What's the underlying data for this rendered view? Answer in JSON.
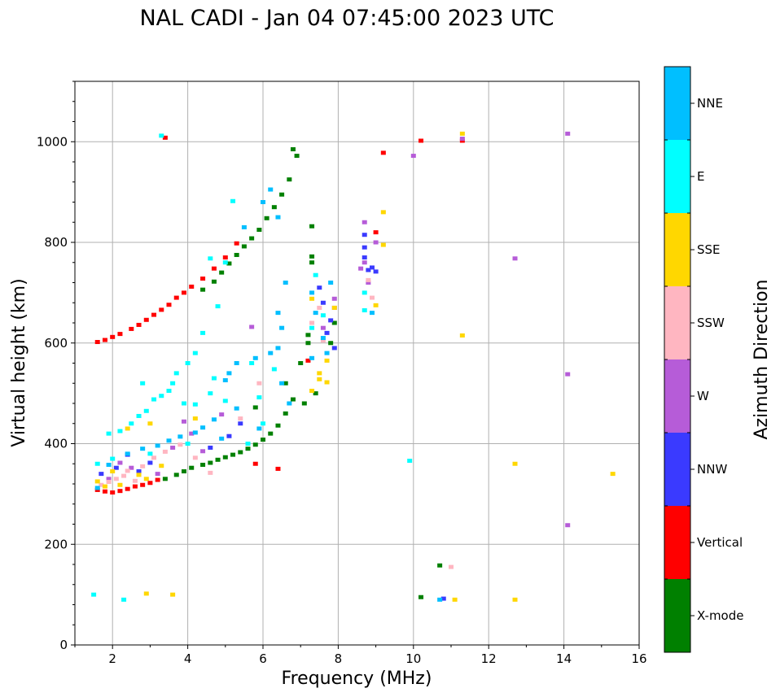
{
  "chart_data": {
    "type": "scatter",
    "title": "NAL CADI - Jan 04 07:45:00 2023 UTC",
    "xlabel": "Frequency (MHz)",
    "ylabel": "Virtual height (km)",
    "xlim": [
      1,
      16
    ],
    "ylim": [
      0,
      1120
    ],
    "xticks": [
      2,
      4,
      6,
      8,
      10,
      12,
      14,
      16
    ],
    "yticks": [
      0,
      200,
      400,
      600,
      800,
      1000
    ],
    "grid": true,
    "colorbar": {
      "label": "Azimuth Direction",
      "categories": [
        {
          "name": "X-mode",
          "color": "#008000"
        },
        {
          "name": "Vertical",
          "color": "#ff0000"
        },
        {
          "name": "NNW",
          "color": "#3a3aff"
        },
        {
          "name": "W",
          "color": "#b65cd8"
        },
        {
          "name": "SSW",
          "color": "#ffb6c1"
        },
        {
          "name": "SSE",
          "color": "#ffd700"
        },
        {
          "name": "E",
          "color": "#00ffff"
        },
        {
          "name": "NNE",
          "color": "#00bfff"
        }
      ]
    },
    "series": [
      {
        "name": "X-mode",
        "color": "#008000",
        "points": [
          [
            3.4,
            330
          ],
          [
            3.7,
            338
          ],
          [
            3.9,
            345
          ],
          [
            4.1,
            352
          ],
          [
            4.4,
            358
          ],
          [
            4.6,
            362
          ],
          [
            4.8,
            368
          ],
          [
            5.0,
            373
          ],
          [
            5.2,
            378
          ],
          [
            5.4,
            383
          ],
          [
            5.6,
            390
          ],
          [
            5.8,
            398
          ],
          [
            6.0,
            408
          ],
          [
            6.2,
            420
          ],
          [
            6.4,
            436
          ],
          [
            6.6,
            460
          ],
          [
            6.8,
            488
          ],
          [
            4.4,
            706
          ],
          [
            4.7,
            722
          ],
          [
            4.9,
            740
          ],
          [
            5.1,
            758
          ],
          [
            5.3,
            775
          ],
          [
            5.5,
            792
          ],
          [
            5.7,
            808
          ],
          [
            5.9,
            825
          ],
          [
            6.1,
            848
          ],
          [
            6.3,
            870
          ],
          [
            6.5,
            895
          ],
          [
            6.7,
            925
          ],
          [
            6.9,
            972
          ],
          [
            6.8,
            985
          ],
          [
            5.8,
            472
          ],
          [
            6.6,
            520
          ],
          [
            7.0,
            560
          ],
          [
            7.2,
            600
          ],
          [
            7.2,
            616
          ],
          [
            7.3,
            772
          ],
          [
            7.3,
            760
          ],
          [
            7.1,
            480
          ],
          [
            7.4,
            500
          ],
          [
            7.3,
            832
          ],
          [
            10.7,
            158
          ],
          [
            10.2,
            95
          ],
          [
            7.9,
            640
          ],
          [
            7.8,
            600
          ]
        ]
      },
      {
        "name": "Vertical",
        "color": "#ff0000",
        "points": [
          [
            1.6,
            308
          ],
          [
            1.8,
            305
          ],
          [
            2.0,
            303
          ],
          [
            2.2,
            306
          ],
          [
            2.4,
            310
          ],
          [
            2.6,
            315
          ],
          [
            2.8,
            318
          ],
          [
            3.0,
            322
          ],
          [
            3.2,
            328
          ],
          [
            1.6,
            602
          ],
          [
            1.8,
            606
          ],
          [
            2.0,
            612
          ],
          [
            2.2,
            618
          ],
          [
            2.5,
            628
          ],
          [
            2.7,
            636
          ],
          [
            2.9,
            646
          ],
          [
            3.1,
            656
          ],
          [
            3.3,
            666
          ],
          [
            3.5,
            676
          ],
          [
            3.7,
            690
          ],
          [
            3.9,
            700
          ],
          [
            4.1,
            712
          ],
          [
            4.4,
            728
          ],
          [
            4.7,
            748
          ],
          [
            5.0,
            770
          ],
          [
            5.3,
            798
          ],
          [
            3.4,
            1008
          ],
          [
            9.2,
            978
          ],
          [
            10.2,
            1002
          ],
          [
            11.3,
            1002
          ],
          [
            7.2,
            565
          ],
          [
            9.0,
            820
          ],
          [
            5.8,
            360
          ],
          [
            6.4,
            350
          ]
        ]
      },
      {
        "name": "NNW",
        "color": "#3a3aff",
        "points": [
          [
            8.7,
            815
          ],
          [
            8.7,
            790
          ],
          [
            8.7,
            770
          ],
          [
            8.8,
            745
          ],
          [
            7.7,
            620
          ],
          [
            7.8,
            645
          ],
          [
            7.5,
            710
          ],
          [
            7.6,
            680
          ],
          [
            7.9,
            590
          ],
          [
            8.9,
            750
          ],
          [
            4.6,
            392
          ],
          [
            5.1,
            415
          ],
          [
            5.4,
            440
          ],
          [
            2.4,
            378
          ],
          [
            3.0,
            362
          ],
          [
            2.7,
            345
          ],
          [
            9.0,
            742
          ],
          [
            10.8,
            92
          ],
          [
            1.7,
            340
          ],
          [
            2.1,
            352
          ]
        ]
      },
      {
        "name": "W",
        "color": "#b65cd8",
        "points": [
          [
            8.7,
            840
          ],
          [
            8.7,
            760
          ],
          [
            8.8,
            720
          ],
          [
            8.6,
            748
          ],
          [
            9.0,
            800
          ],
          [
            7.9,
            670
          ],
          [
            7.6,
            630
          ],
          [
            7.9,
            688
          ],
          [
            10.0,
            972
          ],
          [
            12.7,
            768
          ],
          [
            14.1,
            1016
          ],
          [
            14.1,
            538
          ],
          [
            14.1,
            238
          ],
          [
            5.7,
            632
          ],
          [
            4.9,
            458
          ],
          [
            4.1,
            420
          ],
          [
            3.9,
            444
          ],
          [
            2.2,
            362
          ],
          [
            2.5,
            352
          ],
          [
            3.2,
            340
          ],
          [
            1.9,
            330
          ],
          [
            3.6,
            392
          ],
          [
            4.4,
            385
          ],
          [
            11.3,
            1006
          ]
        ]
      },
      {
        "name": "SSW",
        "color": "#ffb6c1",
        "points": [
          [
            1.7,
            318
          ],
          [
            1.9,
            324
          ],
          [
            2.1,
            330
          ],
          [
            2.3,
            336
          ],
          [
            2.6,
            326
          ],
          [
            2.4,
            346
          ],
          [
            3.1,
            372
          ],
          [
            3.4,
            384
          ],
          [
            3.8,
            398
          ],
          [
            4.2,
            372
          ],
          [
            8.8,
            725
          ],
          [
            8.9,
            690
          ],
          [
            7.6,
            605
          ],
          [
            7.3,
            640
          ],
          [
            5.9,
            520
          ],
          [
            5.4,
            450
          ],
          [
            11.0,
            155
          ],
          [
            2.8,
            355
          ],
          [
            4.6,
            342
          ],
          [
            7.5,
            670
          ]
        ]
      },
      {
        "name": "SSE",
        "color": "#ffd700",
        "points": [
          [
            1.6,
            325
          ],
          [
            1.8,
            315
          ],
          [
            2.0,
            345
          ],
          [
            2.2,
            318
          ],
          [
            2.7,
            338
          ],
          [
            2.9,
            330
          ],
          [
            3.3,
            356
          ],
          [
            3.6,
            100
          ],
          [
            2.9,
            102
          ],
          [
            7.3,
            505
          ],
          [
            7.5,
            528
          ],
          [
            7.5,
            540
          ],
          [
            7.7,
            565
          ],
          [
            7.9,
            670
          ],
          [
            9.2,
            795
          ],
          [
            9.0,
            675
          ],
          [
            9.2,
            860
          ],
          [
            11.3,
            1016
          ],
          [
            11.3,
            615
          ],
          [
            12.7,
            360
          ],
          [
            15.3,
            340
          ],
          [
            11.1,
            90
          ],
          [
            12.7,
            90
          ],
          [
            7.3,
            688
          ],
          [
            7.7,
            522
          ],
          [
            3.0,
            440
          ],
          [
            2.4,
            430
          ],
          [
            4.2,
            450
          ]
        ]
      },
      {
        "name": "E",
        "color": "#00ffff",
        "points": [
          [
            1.5,
            100
          ],
          [
            2.3,
            90
          ],
          [
            3.3,
            1012
          ],
          [
            5.2,
            882
          ],
          [
            5.0,
            760
          ],
          [
            4.6,
            768
          ],
          [
            4.8,
            673
          ],
          [
            4.4,
            620
          ],
          [
            4.2,
            580
          ],
          [
            4.0,
            560
          ],
          [
            3.7,
            540
          ],
          [
            3.6,
            520
          ],
          [
            3.5,
            505
          ],
          [
            3.3,
            495
          ],
          [
            3.1,
            488
          ],
          [
            2.9,
            465
          ],
          [
            2.7,
            455
          ],
          [
            2.5,
            440
          ],
          [
            2.2,
            425
          ],
          [
            1.9,
            420
          ],
          [
            3.9,
            480
          ],
          [
            4.2,
            478
          ],
          [
            5.0,
            485
          ],
          [
            5.7,
            560
          ],
          [
            5.9,
            492
          ],
          [
            6.3,
            548
          ],
          [
            4.7,
            530
          ],
          [
            5.6,
            400
          ],
          [
            6.0,
            440
          ],
          [
            9.9,
            366
          ],
          [
            8.7,
            665
          ],
          [
            8.7,
            700
          ],
          [
            7.6,
            655
          ],
          [
            7.4,
            735
          ],
          [
            7.3,
            630
          ],
          [
            1.6,
            360
          ],
          [
            2.0,
            370
          ],
          [
            3.0,
            380
          ],
          [
            4.0,
            400
          ],
          [
            4.6,
            500
          ],
          [
            2.8,
            520
          ]
        ]
      },
      {
        "name": "NNE",
        "color": "#00bfff",
        "points": [
          [
            6.2,
            905
          ],
          [
            6.4,
            850
          ],
          [
            6.0,
            880
          ],
          [
            5.5,
            830
          ],
          [
            6.6,
            720
          ],
          [
            6.4,
            660
          ],
          [
            6.5,
            630
          ],
          [
            6.4,
            590
          ],
          [
            6.2,
            580
          ],
          [
            5.8,
            570
          ],
          [
            5.3,
            560
          ],
          [
            5.1,
            540
          ],
          [
            5.0,
            526
          ],
          [
            5.3,
            470
          ],
          [
            4.7,
            448
          ],
          [
            4.4,
            432
          ],
          [
            4.2,
            422
          ],
          [
            3.8,
            414
          ],
          [
            3.5,
            406
          ],
          [
            3.2,
            396
          ],
          [
            2.8,
            390
          ],
          [
            2.4,
            380
          ],
          [
            1.6,
            312
          ],
          [
            1.9,
            358
          ],
          [
            7.3,
            700
          ],
          [
            7.4,
            660
          ],
          [
            7.6,
            610
          ],
          [
            7.7,
            580
          ],
          [
            7.3,
            570
          ],
          [
            6.7,
            480
          ],
          [
            6.5,
            520
          ],
          [
            7.8,
            720
          ],
          [
            8.9,
            660
          ],
          [
            10.7,
            90
          ],
          [
            5.9,
            430
          ],
          [
            4.9,
            410
          ]
        ]
      }
    ]
  }
}
